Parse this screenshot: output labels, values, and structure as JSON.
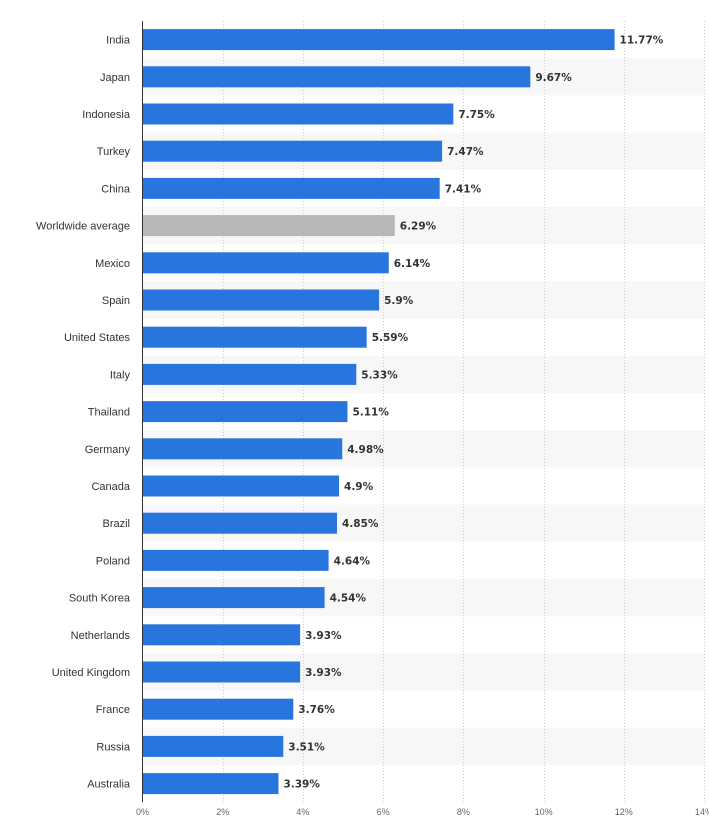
{
  "chart_data": {
    "type": "bar",
    "orientation": "horizontal",
    "title": "",
    "xlabel": "",
    "ylabel": "",
    "xlim": [
      0,
      14
    ],
    "x_ticks": [
      0,
      2,
      4,
      6,
      8,
      10,
      12,
      14
    ],
    "x_tick_labels": [
      "0%",
      "2%",
      "4%",
      "6%",
      "8%",
      "10%",
      "12%",
      "14%"
    ],
    "value_suffix": "%",
    "grid": true,
    "colors": {
      "bar": "#2876dd",
      "highlight": "#b7b7b7",
      "band": "#f7f7f7",
      "grid": "#cccccc",
      "axis": "#333333"
    },
    "categories": [
      "India",
      "Japan",
      "Indonesia",
      "Turkey",
      "China",
      "Worldwide average",
      "Mexico",
      "Spain",
      "United States",
      "Italy",
      "Thailand",
      "Germany",
      "Canada",
      "Brazil",
      "Poland",
      "South Korea",
      "Netherlands",
      "United Kingdom",
      "France",
      "Russia",
      "Australia"
    ],
    "values": [
      11.77,
      9.67,
      7.75,
      7.47,
      7.41,
      6.29,
      6.14,
      5.9,
      5.59,
      5.33,
      5.11,
      4.98,
      4.9,
      4.85,
      4.64,
      4.54,
      3.93,
      3.93,
      3.76,
      3.51,
      3.39
    ],
    "value_labels": [
      "11.77%",
      "9.67%",
      "7.75%",
      "7.47%",
      "7.41%",
      "6.29%",
      "6.14%",
      "5.9%",
      "5.59%",
      "5.33%",
      "5.11%",
      "4.98%",
      "4.9%",
      "4.85%",
      "4.64%",
      "4.54%",
      "3.93%",
      "3.93%",
      "3.76%",
      "3.51%",
      "3.39%"
    ],
    "highlighted_category": "Worldwide average"
  }
}
